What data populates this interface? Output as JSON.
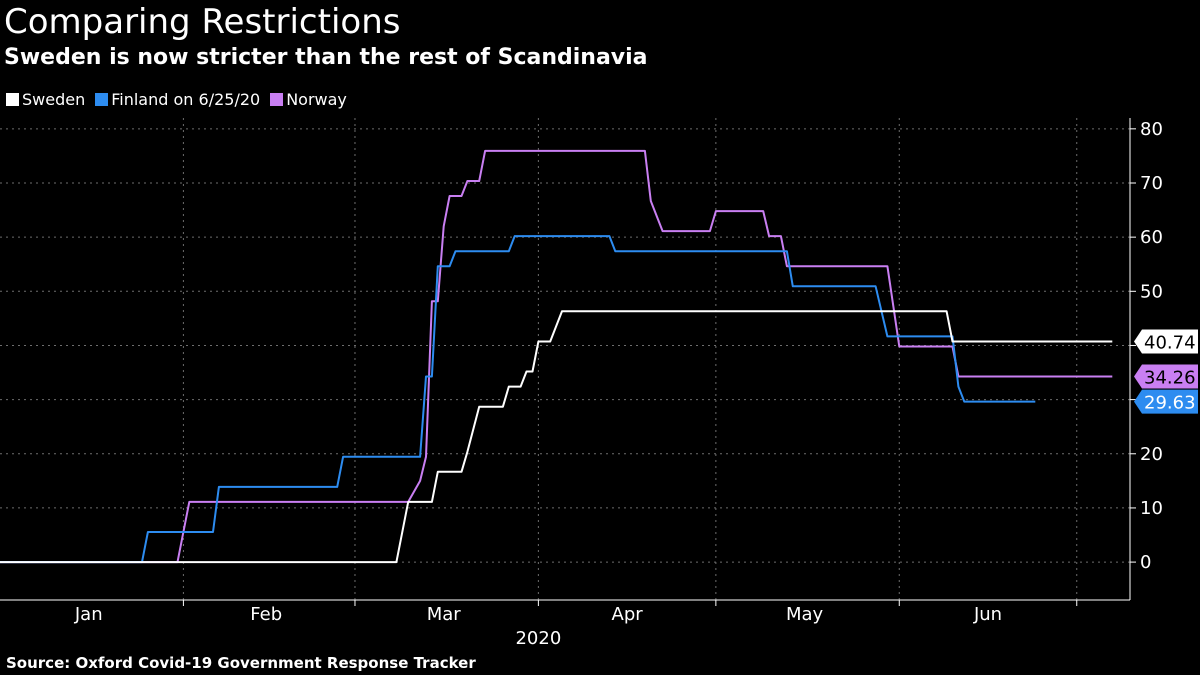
{
  "title": "Comparing Restrictions",
  "subtitle": "Sweden is now stricter than the rest of Scandinavia",
  "source": "Source: Oxford Covid-19 Government Response Tracker",
  "legend": [
    {
      "label": "Sweden",
      "color": "#ffffff"
    },
    {
      "label": "Finland on 6/25/20",
      "color": "#2d8cf0"
    },
    {
      "label": "Norway",
      "color": "#c97ff2"
    }
  ],
  "chart_data": {
    "type": "line",
    "title": "Comparing Restrictions",
    "subtitle": "Sweden is now stricter than the rest of Scandinavia",
    "xlim": [
      "2020-01-01",
      "2020-07-10"
    ],
    "ylim": [
      -7,
      82
    ],
    "yticks": [
      0,
      10,
      20,
      30,
      40,
      50,
      60,
      70,
      80
    ],
    "xticks": [
      {
        "label": "Jan",
        "date": "2020-01-16"
      },
      {
        "label": "Feb",
        "date": "2020-02-15"
      },
      {
        "label": "Mar",
        "date": "2020-03-16"
      },
      {
        "label": "Apr",
        "date": "2020-04-16"
      },
      {
        "label": "May",
        "date": "2020-05-16"
      },
      {
        "label": "Jun",
        "date": "2020-06-16"
      }
    ],
    "year_label": "2020",
    "grid": true,
    "legend_position": "top-left",
    "series": [
      {
        "name": "Sweden",
        "color": "#ffffff",
        "last_value": "40.74",
        "points": [
          [
            "2020-01-01",
            0
          ],
          [
            "2020-03-08",
            0
          ],
          [
            "2020-03-10",
            11.11
          ],
          [
            "2020-03-12",
            11.11
          ],
          [
            "2020-03-14",
            11.11
          ],
          [
            "2020-03-15",
            16.67
          ],
          [
            "2020-03-19",
            16.67
          ],
          [
            "2020-03-20",
            20.37
          ],
          [
            "2020-03-22",
            28.7
          ],
          [
            "2020-03-26",
            28.7
          ],
          [
            "2020-03-27",
            32.41
          ],
          [
            "2020-03-29",
            32.41
          ],
          [
            "2020-03-30",
            35.19
          ],
          [
            "2020-03-31",
            35.19
          ],
          [
            "2020-04-01",
            40.74
          ],
          [
            "2020-04-03",
            40.74
          ],
          [
            "2020-04-05",
            46.3
          ],
          [
            "2020-06-09",
            46.3
          ],
          [
            "2020-06-10",
            40.74
          ],
          [
            "2020-07-07",
            40.74
          ]
        ]
      },
      {
        "name": "Finland on 6/25/20",
        "color": "#2d8cf0",
        "last_value": "29.63",
        "points": [
          [
            "2020-01-01",
            0
          ],
          [
            "2020-01-25",
            0
          ],
          [
            "2020-01-26",
            5.56
          ],
          [
            "2020-01-31",
            5.56
          ],
          [
            "2020-02-06",
            5.56
          ],
          [
            "2020-02-07",
            13.89
          ],
          [
            "2020-02-27",
            13.89
          ],
          [
            "2020-02-28",
            19.44
          ],
          [
            "2020-03-12",
            19.44
          ],
          [
            "2020-03-13",
            34.26
          ],
          [
            "2020-03-14",
            34.26
          ],
          [
            "2020-03-15",
            54.63
          ],
          [
            "2020-03-17",
            54.63
          ],
          [
            "2020-03-18",
            57.41
          ],
          [
            "2020-03-27",
            57.41
          ],
          [
            "2020-03-28",
            60.19
          ],
          [
            "2020-04-13",
            60.19
          ],
          [
            "2020-04-14",
            57.41
          ],
          [
            "2020-05-13",
            57.41
          ],
          [
            "2020-05-14",
            50.93
          ],
          [
            "2020-05-28",
            50.93
          ],
          [
            "2020-05-30",
            41.67
          ],
          [
            "2020-06-10",
            41.67
          ],
          [
            "2020-06-11",
            32.41
          ],
          [
            "2020-06-12",
            29.63
          ],
          [
            "2020-06-24",
            29.63
          ]
        ]
      },
      {
        "name": "Norway",
        "color": "#c97ff2",
        "last_value": "34.26",
        "points": [
          [
            "2020-01-01",
            0
          ],
          [
            "2020-01-31",
            0
          ],
          [
            "2020-02-02",
            11.11
          ],
          [
            "2020-03-10",
            11.11
          ],
          [
            "2020-03-12",
            15
          ],
          [
            "2020-03-13",
            19.44
          ],
          [
            "2020-03-14",
            48.15
          ],
          [
            "2020-03-15",
            48.15
          ],
          [
            "2020-03-16",
            62
          ],
          [
            "2020-03-17",
            67.59
          ],
          [
            "2020-03-19",
            67.59
          ],
          [
            "2020-03-20",
            70.37
          ],
          [
            "2020-03-22",
            70.37
          ],
          [
            "2020-03-23",
            75.93
          ],
          [
            "2020-04-19",
            75.93
          ],
          [
            "2020-04-20",
            66.67
          ],
          [
            "2020-04-22",
            61.11
          ],
          [
            "2020-04-30",
            61.11
          ],
          [
            "2020-05-01",
            64.81
          ],
          [
            "2020-05-09",
            64.81
          ],
          [
            "2020-05-10",
            60.19
          ],
          [
            "2020-05-12",
            60.19
          ],
          [
            "2020-05-13",
            54.63
          ],
          [
            "2020-05-30",
            54.63
          ],
          [
            "2020-06-01",
            39.81
          ],
          [
            "2020-06-10",
            39.81
          ],
          [
            "2020-06-11",
            34.26
          ],
          [
            "2020-07-07",
            34.26
          ]
        ]
      }
    ]
  }
}
